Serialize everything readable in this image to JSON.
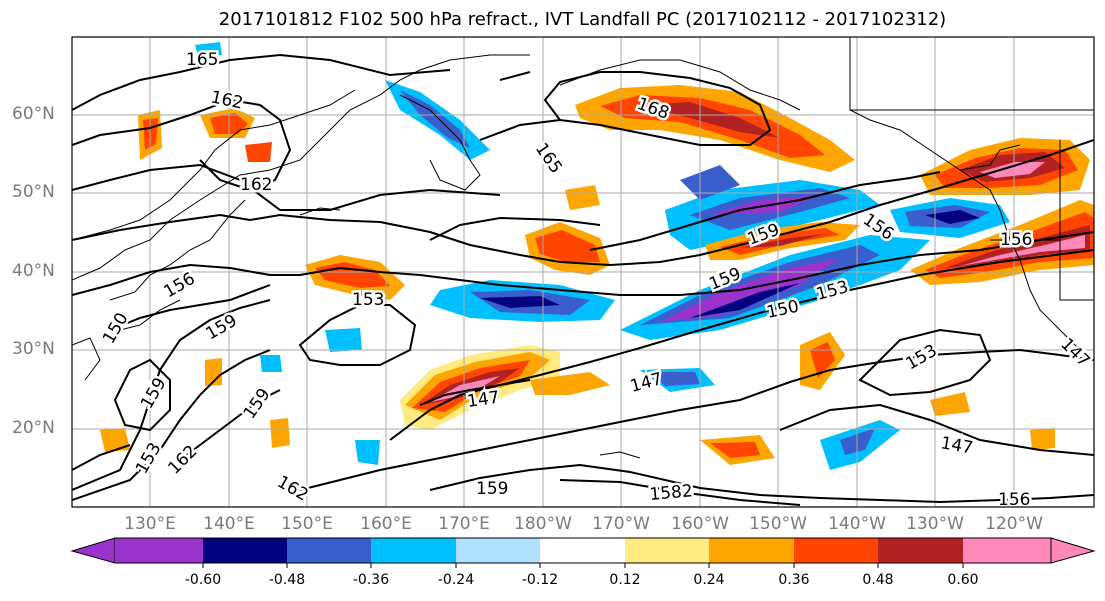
{
  "title": "2017101812 F102 500 hPa refract., IVT Landfall PC (2017102112 - 2017102312)",
  "map": {
    "type": "contour-map",
    "lat_labels": [
      "60°N",
      "50°N",
      "40°N",
      "30°N",
      "20°N"
    ],
    "lon_labels": [
      "130°E",
      "140°E",
      "150°E",
      "160°E",
      "170°E",
      "180°W",
      "170°W",
      "160°W",
      "150°W",
      "140°W",
      "130°W",
      "120°W"
    ],
    "grid": true,
    "contour_labels": [
      "165",
      "162",
      "162",
      "165",
      "168",
      "159",
      "156",
      "156",
      "153",
      "150",
      "153",
      "159",
      "156",
      "150",
      "159",
      "159",
      "153",
      "147",
      "147",
      "159",
      "162",
      "162",
      "159",
      "1582",
      "147",
      "156",
      "153",
      "147"
    ]
  },
  "colorbar": {
    "tick_labels": [
      "-0.60",
      "-0.48",
      "-0.36",
      "-0.24",
      "-0.12",
      "0.12",
      "0.24",
      "0.36",
      "0.48",
      "0.60"
    ],
    "colors": [
      "#9933cc",
      "#000080",
      "#3a5fcd",
      "#00bfff",
      "#b0e2ff",
      "#ffffff",
      "#ffeb80",
      "#ffa500",
      "#ff4500",
      "#b22222",
      "#ff88bb"
    ]
  }
}
